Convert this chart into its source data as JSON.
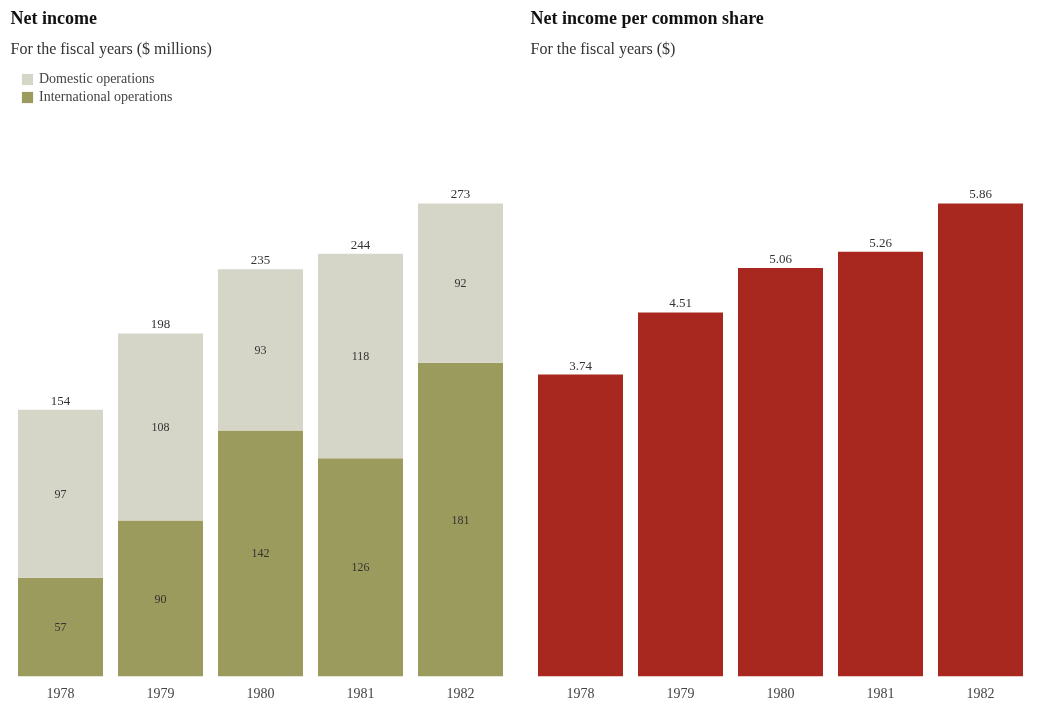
{
  "chart_data": [
    {
      "type": "bar",
      "title": "Net income",
      "subtitle": "For the fiscal years ($ millions)",
      "categories": [
        "1978",
        "1979",
        "1980",
        "1981",
        "1982"
      ],
      "stacked": true,
      "series": [
        {
          "name": "International operations",
          "color": "#9a9b5c",
          "values": [
            57,
            90,
            142,
            126,
            181
          ]
        },
        {
          "name": "Domestic operations",
          "color": "#d5d6c8",
          "values": [
            97,
            108,
            93,
            118,
            92
          ]
        }
      ],
      "data_labels": true,
      "totals": [
        "154",
        "198",
        "235",
        "244",
        "273"
      ],
      "legend": "top left",
      "grid": false
    },
    {
      "type": "bar",
      "title": "Net income per common share",
      "subtitle": "For the fiscal years ($)",
      "categories": [
        "1978",
        "1979",
        "1980",
        "1981",
        "1982"
      ],
      "values": [
        3.74,
        4.51,
        5.06,
        5.26,
        5.86
      ],
      "color": "#a8281f",
      "data_labels": true,
      "grid": false
    }
  ]
}
